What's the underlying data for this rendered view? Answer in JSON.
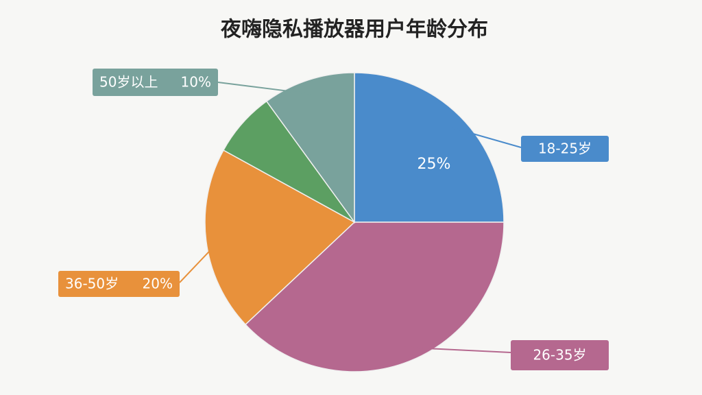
{
  "chart_data": {
    "type": "pie",
    "title": "夜嗨隐私播放器用户年龄分布",
    "categories": [
      "18-25岁",
      "26-35岁",
      "36-50岁",
      null,
      "50岁以上"
    ],
    "values": [
      25,
      38,
      20,
      7,
      10
    ],
    "value_labels": [
      "25%",
      null,
      "20%",
      null,
      "10%"
    ],
    "colors": [
      "#4a8bcb",
      "#b5688f",
      "#e8913b",
      "#5c9f62",
      "#79a29c"
    ]
  }
}
